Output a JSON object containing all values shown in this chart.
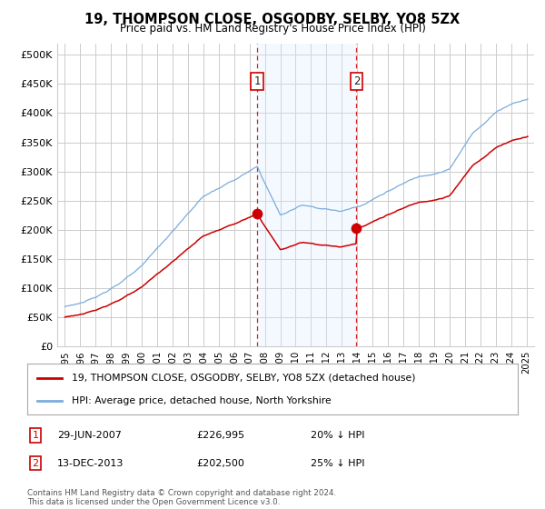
{
  "title": "19, THOMPSON CLOSE, OSGODBY, SELBY, YO8 5ZX",
  "subtitle": "Price paid vs. HM Land Registry's House Price Index (HPI)",
  "legend_line1": "19, THOMPSON CLOSE, OSGODBY, SELBY, YO8 5ZX (detached house)",
  "legend_line2": "HPI: Average price, detached house, North Yorkshire",
  "footnote": "Contains HM Land Registry data © Crown copyright and database right 2024.\nThis data is licensed under the Open Government Licence v3.0.",
  "transaction1_label": "1",
  "transaction1_date": "29-JUN-2007",
  "transaction1_price": "£226,995",
  "transaction1_hpi": "20% ↓ HPI",
  "transaction2_label": "2",
  "transaction2_date": "13-DEC-2013",
  "transaction2_price": "£202,500",
  "transaction2_hpi": "25% ↓ HPI",
  "transaction1_year": 2007.5,
  "transaction2_year": 2013.95,
  "transaction1_value": 226995,
  "transaction2_value": 202500,
  "ylabel_ticks": [
    "£0",
    "£50K",
    "£100K",
    "£150K",
    "£200K",
    "£250K",
    "£300K",
    "£350K",
    "£400K",
    "£450K",
    "£500K"
  ],
  "ytick_values": [
    0,
    50000,
    100000,
    150000,
    200000,
    250000,
    300000,
    350000,
    400000,
    450000,
    500000
  ],
  "ylim": [
    0,
    520000
  ],
  "xlim_start": 1994.5,
  "xlim_end": 2025.5,
  "line_red_color": "#cc0000",
  "line_blue_color": "#7aacdc",
  "shade_color": "#ddeeff",
  "vline_color": "#cc0000",
  "grid_color": "#cccccc",
  "background_color": "#ffffff",
  "x_ticks": [
    1995,
    1996,
    1997,
    1998,
    1999,
    2000,
    2001,
    2002,
    2003,
    2004,
    2005,
    2006,
    2007,
    2008,
    2009,
    2010,
    2011,
    2012,
    2013,
    2014,
    2015,
    2016,
    2017,
    2018,
    2019,
    2020,
    2021,
    2022,
    2023,
    2024,
    2025
  ]
}
